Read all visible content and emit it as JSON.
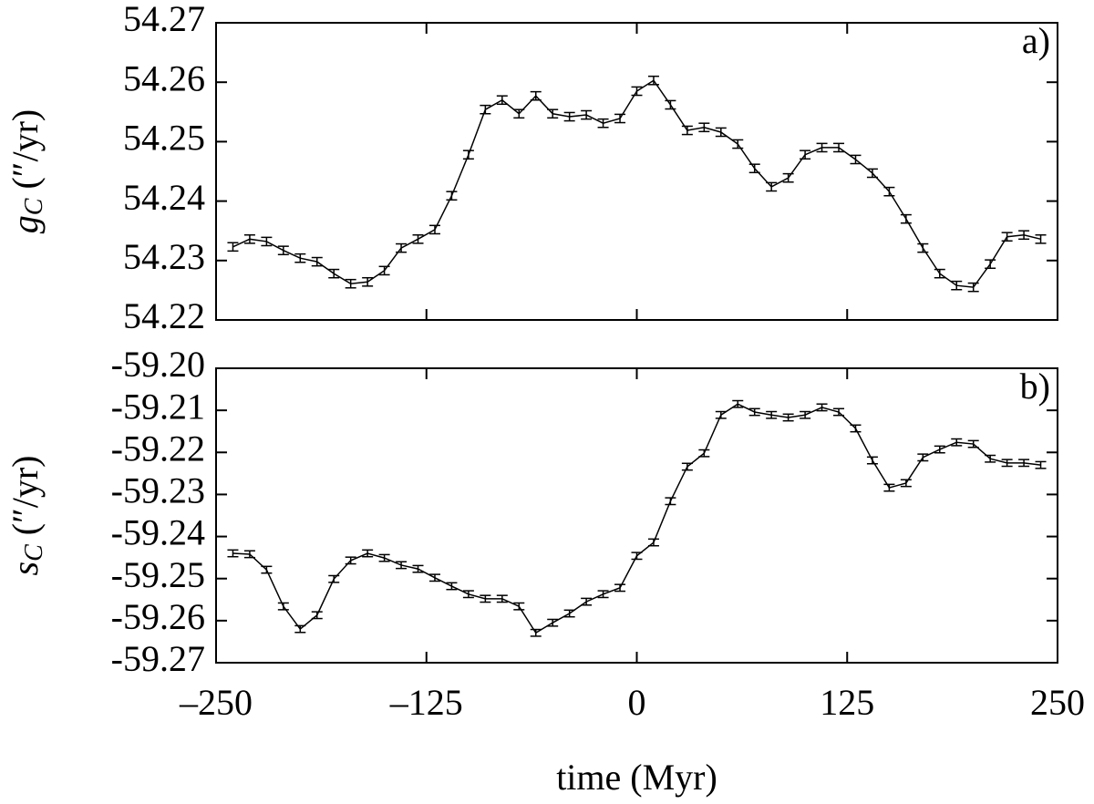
{
  "chart_data": [
    {
      "type": "line",
      "panel_label": "a)",
      "ylabel": {
        "symbol": "g",
        "subscript": "C",
        "unit": "(″/yr)"
      },
      "xlim": [
        -250,
        250
      ],
      "x": [
        -240,
        -230,
        -220,
        -210,
        -200,
        -190,
        -180,
        -170,
        -160,
        -150,
        -140,
        -130,
        -120,
        -110,
        -100,
        -90,
        -80,
        -70,
        -60,
        -50,
        -40,
        -30,
        -20,
        -10,
        0,
        10,
        20,
        30,
        40,
        50,
        60,
        70,
        80,
        90,
        100,
        110,
        120,
        130,
        140,
        150,
        160,
        170,
        180,
        190,
        200,
        210,
        220,
        230,
        240
      ],
      "values": [
        54.2323,
        54.2336,
        54.2332,
        54.2317,
        54.2304,
        54.2298,
        54.2278,
        54.2261,
        54.2264,
        54.2283,
        54.2321,
        54.2336,
        54.2352,
        54.2409,
        54.2478,
        54.2554,
        54.257,
        54.2547,
        54.2577,
        54.2547,
        54.2542,
        54.2545,
        54.2531,
        54.2539,
        54.2585,
        54.2603,
        54.2562,
        54.2519,
        54.2524,
        54.2516,
        54.2496,
        54.2455,
        54.2424,
        54.2439,
        54.2478,
        54.249,
        54.249,
        54.247,
        54.2447,
        54.2416,
        54.237,
        54.2321,
        54.2278,
        54.2258,
        54.2255,
        54.2294,
        54.234,
        54.2343,
        54.2336
      ],
      "error": 0.0007,
      "color": "#000000",
      "ylim": [
        54.22,
        54.27
      ],
      "yticks": [
        54.22,
        54.23,
        54.24,
        54.25,
        54.26,
        54.27
      ]
    },
    {
      "type": "line",
      "panel_label": "b)",
      "ylabel": {
        "symbol": "s",
        "subscript": "C",
        "unit": "(″/yr)"
      },
      "xlabel": "time (Myr)",
      "xlim": [
        -250,
        250
      ],
      "xticks": [
        {
          "value": -250,
          "label": "–250"
        },
        {
          "value": -125,
          "label": "–125"
        },
        0,
        125,
        250
      ],
      "x": [
        -240,
        -230,
        -220,
        -210,
        -200,
        -190,
        -180,
        -170,
        -160,
        -150,
        -140,
        -130,
        -120,
        -110,
        -100,
        -90,
        -80,
        -70,
        -60,
        -50,
        -40,
        -30,
        -20,
        -10,
        0,
        10,
        20,
        30,
        40,
        50,
        60,
        70,
        80,
        90,
        100,
        110,
        120,
        130,
        140,
        150,
        160,
        170,
        180,
        190,
        200,
        210,
        220,
        230,
        240
      ],
      "values": [
        -59.244,
        -59.2442,
        -59.2479,
        -59.2566,
        -59.262,
        -59.2587,
        -59.2501,
        -59.2457,
        -59.244,
        -59.2451,
        -59.2468,
        -59.2477,
        -59.2498,
        -59.2518,
        -59.2537,
        -59.2548,
        -59.2548,
        -59.2566,
        -59.2629,
        -59.2605,
        -59.2583,
        -59.2555,
        -59.2537,
        -59.2522,
        -59.2446,
        -59.2414,
        -59.2316,
        -59.2234,
        -59.2202,
        -59.2111,
        -59.2085,
        -59.2104,
        -59.2111,
        -59.2117,
        -59.2111,
        -59.2093,
        -59.2104,
        -59.2143,
        -59.2219,
        -59.2284,
        -59.2273,
        -59.2212,
        -59.2193,
        -59.2176,
        -59.218,
        -59.2215,
        -59.2225,
        -59.2225,
        -59.223
      ],
      "error": 0.0008,
      "color": "#000000",
      "ylim": [
        -59.27,
        -59.2
      ],
      "yticks": [
        -59.27,
        -59.26,
        -59.25,
        -59.24,
        -59.23,
        -59.22,
        -59.21,
        {
          "value": -59.2,
          "label": "-59.20"
        }
      ]
    }
  ]
}
